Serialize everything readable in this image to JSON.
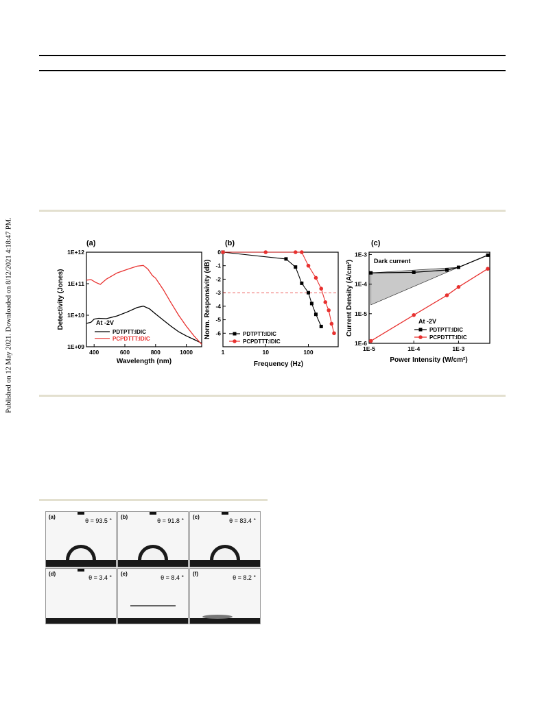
{
  "side_note": "Published on 12 May 2021. Downloaded on 8/12/2021 4:18:47 PM.",
  "chart_data": [
    {
      "type": "line",
      "panel_label": "(a)",
      "xlabel": "Wavelength (nm)",
      "ylabel": "Detectivity (Jones)",
      "xlim": [
        350,
        1100
      ],
      "ylim": [
        1000000000.0,
        1000000000000.0
      ],
      "y_scale": "log",
      "xticks": [
        400,
        600,
        800,
        1000
      ],
      "ytick_labels": [
        "1E+09",
        "1E+10",
        "1E+11",
        "1E+12"
      ],
      "annotation": "At -2V",
      "legend_position": "bottom-left",
      "series": [
        {
          "name": "PDTPTT:IDIC",
          "color": "#000000",
          "x": [
            350,
            380,
            400,
            430,
            480,
            550,
            620,
            680,
            720,
            760,
            800,
            850,
            900,
            950,
            1000,
            1050,
            1100
          ],
          "y": [
            5500000000.0,
            6000000000.0,
            7500000000.0,
            8000000000.0,
            7800000000.0,
            9500000000.0,
            13000000000.0,
            17500000000.0,
            19500000000.0,
            16000000000.0,
            11000000000.0,
            7000000000.0,
            4500000000.0,
            3000000000.0,
            2200000000.0,
            1700000000.0,
            1300000000.0
          ]
        },
        {
          "name": "PCPDTTT:IDIC",
          "color": "#e8312f",
          "x": [
            350,
            380,
            410,
            440,
            480,
            550,
            620,
            680,
            720,
            750,
            780,
            800,
            850,
            900,
            950,
            1000,
            1050,
            1100
          ],
          "y": [
            130000000000.0,
            135000000000.0,
            110000000000.0,
            95000000000.0,
            140000000000.0,
            220000000000.0,
            290000000000.0,
            360000000000.0,
            380000000000.0,
            290000000000.0,
            180000000000.0,
            150000000000.0,
            65000000000.0,
            25000000000.0,
            10000000000.0,
            4500000000.0,
            2200000000.0,
            1200000000.0
          ]
        }
      ]
    },
    {
      "type": "line",
      "panel_label": "(b)",
      "xlabel": "Frequency (Hz)",
      "ylabel": "Norm. Responsivity (dB)",
      "xlim": [
        1,
        500
      ],
      "ylim": [
        -7,
        0
      ],
      "x_scale": "log",
      "xtick_labels": [
        "1",
        "10",
        "100"
      ],
      "yticks": [
        0,
        -1,
        -2,
        -3,
        -4,
        -5,
        -6
      ],
      "reference_line_y": -3,
      "legend_position": "bottom-left",
      "series": [
        {
          "name": "PDTPTT:IDIC",
          "color": "#000000",
          "marker": "square",
          "x": [
            1,
            30,
            50,
            70,
            100,
            120,
            150,
            200
          ],
          "y": [
            0,
            -0.5,
            -1.1,
            -2.3,
            -3.0,
            -3.8,
            -4.6,
            -5.5
          ]
        },
        {
          "name": "PCPDTTT:IDIC",
          "color": "#e8312f",
          "marker": "circle",
          "x": [
            1,
            10,
            50,
            70,
            100,
            150,
            200,
            250,
            300,
            350,
            400
          ],
          "y": [
            0,
            0,
            0,
            0,
            -1.0,
            -1.9,
            -2.7,
            -3.7,
            -4.3,
            -5.3,
            -6.0
          ]
        }
      ]
    },
    {
      "type": "line",
      "panel_label": "(c)",
      "xlabel": "Power Intensity (W/cm²)",
      "ylabel": "Current Density (A/cm²)",
      "xlim": [
        1e-05,
        0.005
      ],
      "ylim": [
        1e-06,
        0.0012
      ],
      "x_scale": "log",
      "y_scale": "log",
      "xtick_labels": [
        "1E-5",
        "1E-4",
        "1E-3"
      ],
      "ytick_labels": [
        "1E-6",
        "1E-5",
        "1E-4",
        "1E-3"
      ],
      "annotation": "At -2V",
      "shaded_label": "Dark current",
      "legend_position": "bottom-right",
      "series": [
        {
          "name": "PDTPTT:IDIC",
          "color": "#000000",
          "marker": "square",
          "x": [
            1.1e-05,
            0.0001,
            0.00055,
            0.001,
            0.0045
          ],
          "y": [
            0.00024,
            0.00025,
            0.0003,
            0.00037,
            0.00095
          ]
        },
        {
          "name": "PCPDTTT:IDIC",
          "color": "#e8312f",
          "marker": "circle",
          "x": [
            1.1e-05,
            0.0001,
            0.00055,
            0.001,
            0.0045
          ],
          "y": [
            1.2e-06,
            9e-06,
            4.2e-05,
            8e-05,
            0.00033
          ]
        }
      ]
    }
  ],
  "contact_angle_panels": [
    {
      "label": "(a)",
      "angle": "θ = 93.5 °"
    },
    {
      "label": "(b)",
      "angle": "θ = 91.8 °"
    },
    {
      "label": "(c)",
      "angle": "θ = 83.4 °"
    },
    {
      "label": "(d)",
      "angle": "θ = 3.4 °"
    },
    {
      "label": "(e)",
      "angle": "θ = 8.4 °"
    },
    {
      "label": "(f)",
      "angle": "θ = 8.2 °"
    }
  ]
}
